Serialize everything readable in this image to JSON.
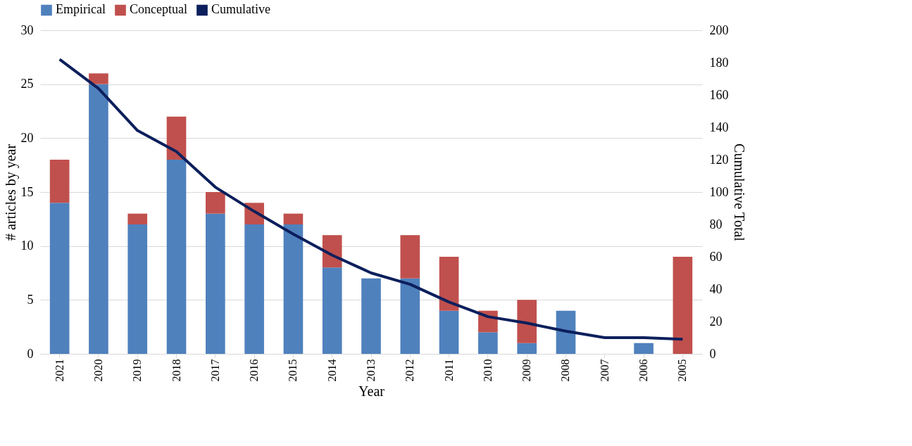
{
  "chart_data": {
    "type": "bar",
    "stacked": true,
    "xlabel": "Year",
    "ylabel": "# articles by year",
    "y2label": "Cumulative Total",
    "categories": [
      "2021",
      "2020",
      "2019",
      "2018",
      "2017",
      "2016",
      "2015",
      "2014",
      "2013",
      "2012",
      "2011",
      "2010",
      "2009",
      "2008",
      "2007",
      "2006",
      "2005"
    ],
    "series": [
      {
        "name": "Empirical",
        "color": "#4f81bd",
        "values": [
          14,
          25,
          12,
          18,
          13,
          12,
          12,
          8,
          7,
          7,
          4,
          2,
          1,
          4,
          0,
          1,
          0
        ]
      },
      {
        "name": "Conceptual",
        "color": "#c0504d",
        "values": [
          4,
          1,
          1,
          4,
          2,
          2,
          1,
          3,
          0,
          4,
          5,
          2,
          4,
          0,
          0,
          0,
          9
        ]
      },
      {
        "name": "Cumulative",
        "color": "#0c1f5c",
        "type": "line",
        "axis": "y2",
        "values": [
          182,
          164,
          138,
          125,
          103,
          88,
          74,
          61,
          50,
          43,
          32,
          23,
          19,
          14,
          10,
          10,
          9
        ]
      }
    ],
    "ylim": [
      0,
      30
    ],
    "yticks": [
      0,
      5,
      10,
      15,
      20,
      25,
      30
    ],
    "y2lim": [
      0,
      200
    ],
    "y2ticks": [
      0,
      20,
      40,
      60,
      80,
      100,
      120,
      140,
      160,
      180,
      200
    ],
    "grid": "y",
    "legend": "top"
  }
}
